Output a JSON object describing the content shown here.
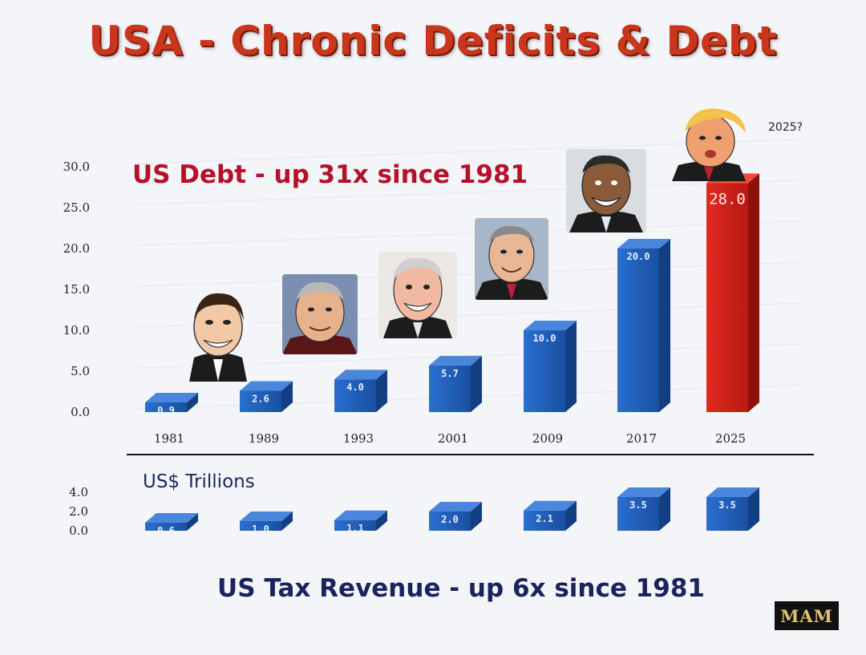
{
  "title": "USA - Chronic Deficits & Debt",
  "unit_label": "US$ Trillions",
  "future_label": "2025?",
  "logo_text": "MAM",
  "colors": {
    "bar_blue": "#1f5fb8",
    "bar_red": "#d6261c",
    "title_red": "#c9361c"
  },
  "caricatures": [
    {
      "name": "reagan-caricature-icon"
    },
    {
      "name": "bush-sr-caricature-icon"
    },
    {
      "name": "clinton-caricature-icon"
    },
    {
      "name": "bush-jr-caricature-icon"
    },
    {
      "name": "obama-caricature-icon"
    },
    {
      "name": "trump-caricature-icon"
    }
  ],
  "chart_data": [
    {
      "type": "bar",
      "annotation": "US Debt  -  up 31x since 1981",
      "categories": [
        "1981",
        "1989",
        "1993",
        "2001",
        "2009",
        "2017",
        "2025"
      ],
      "values": [
        0.9,
        2.6,
        4.0,
        5.7,
        10.0,
        20.0,
        28.0
      ],
      "value_labels": [
        "0.9",
        "2.6",
        "4.0",
        "5.7",
        "10.0",
        "20.0",
        "28.0"
      ],
      "yticks": [
        "0.0",
        "5.0",
        "10.0",
        "15.0",
        "20.0",
        "25.0",
        "30.0"
      ],
      "ylim": [
        0,
        30
      ],
      "highlight_index": 6
    },
    {
      "type": "bar",
      "annotation": "US Tax Revenue  - up 6x since 1981",
      "categories": [
        "1981",
        "1989",
        "1993",
        "2001",
        "2009",
        "2017",
        "2025"
      ],
      "values": [
        0.6,
        1.0,
        1.1,
        2.0,
        2.1,
        3.5,
        3.5
      ],
      "value_labels": [
        "0.6",
        "1.0",
        "1.1",
        "2.0",
        "2.1",
        "3.5",
        "3.5"
      ],
      "yticks": [
        "0.0",
        "2.0",
        "4.0"
      ],
      "ylim": [
        0,
        4
      ]
    }
  ]
}
